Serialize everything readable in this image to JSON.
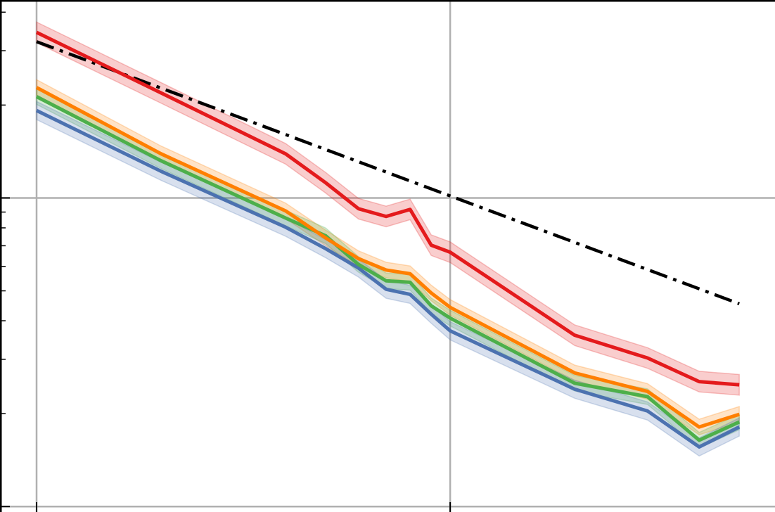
{
  "chart_data": {
    "type": "line",
    "title": "",
    "xlabel": "",
    "ylabel": "",
    "xscale": "log",
    "yscale": "log",
    "xlim": [
      1,
      61
    ],
    "ylim": [
      0.096,
      4.38
    ],
    "grid": true,
    "x": [
      1,
      2,
      4,
      5,
      6,
      7,
      8,
      9,
      10,
      20,
      30,
      40,
      50
    ],
    "series": [
      {
        "name": "red",
        "color": "#e41a1c",
        "band_factor": 1.08,
        "values": [
          3.44,
          2.19,
          1.39,
          1.12,
          0.923,
          0.871,
          0.918,
          0.703,
          0.667,
          0.359,
          0.303,
          0.254,
          0.248
        ]
      },
      {
        "name": "orange",
        "color": "#ff7f00",
        "band_factor": 1.06,
        "values": [
          2.28,
          1.39,
          0.908,
          0.742,
          0.636,
          0.584,
          0.568,
          0.492,
          0.442,
          0.271,
          0.236,
          0.181,
          0.199
        ]
      },
      {
        "name": "green",
        "color": "#4daf4a",
        "band_factor": 1.06,
        "values": [
          2.13,
          1.32,
          0.861,
          0.754,
          0.609,
          0.539,
          0.533,
          0.447,
          0.408,
          0.251,
          0.227,
          0.164,
          0.188
        ]
      },
      {
        "name": "blue",
        "color": "#4c72b0",
        "band_factor": 1.07,
        "values": [
          1.92,
          1.22,
          0.804,
          0.685,
          0.593,
          0.506,
          0.487,
          0.42,
          0.371,
          0.24,
          0.204,
          0.156,
          0.181
        ]
      }
    ],
    "reference": {
      "name": "reference",
      "color": "#000000",
      "style": "dash-dot",
      "x": [
        1,
        50
      ],
      "values": [
        3.21,
        0.454
      ]
    },
    "x_major_ticks": [
      1,
      10
    ],
    "y_major_ticks": [
      0.1,
      1
    ]
  }
}
